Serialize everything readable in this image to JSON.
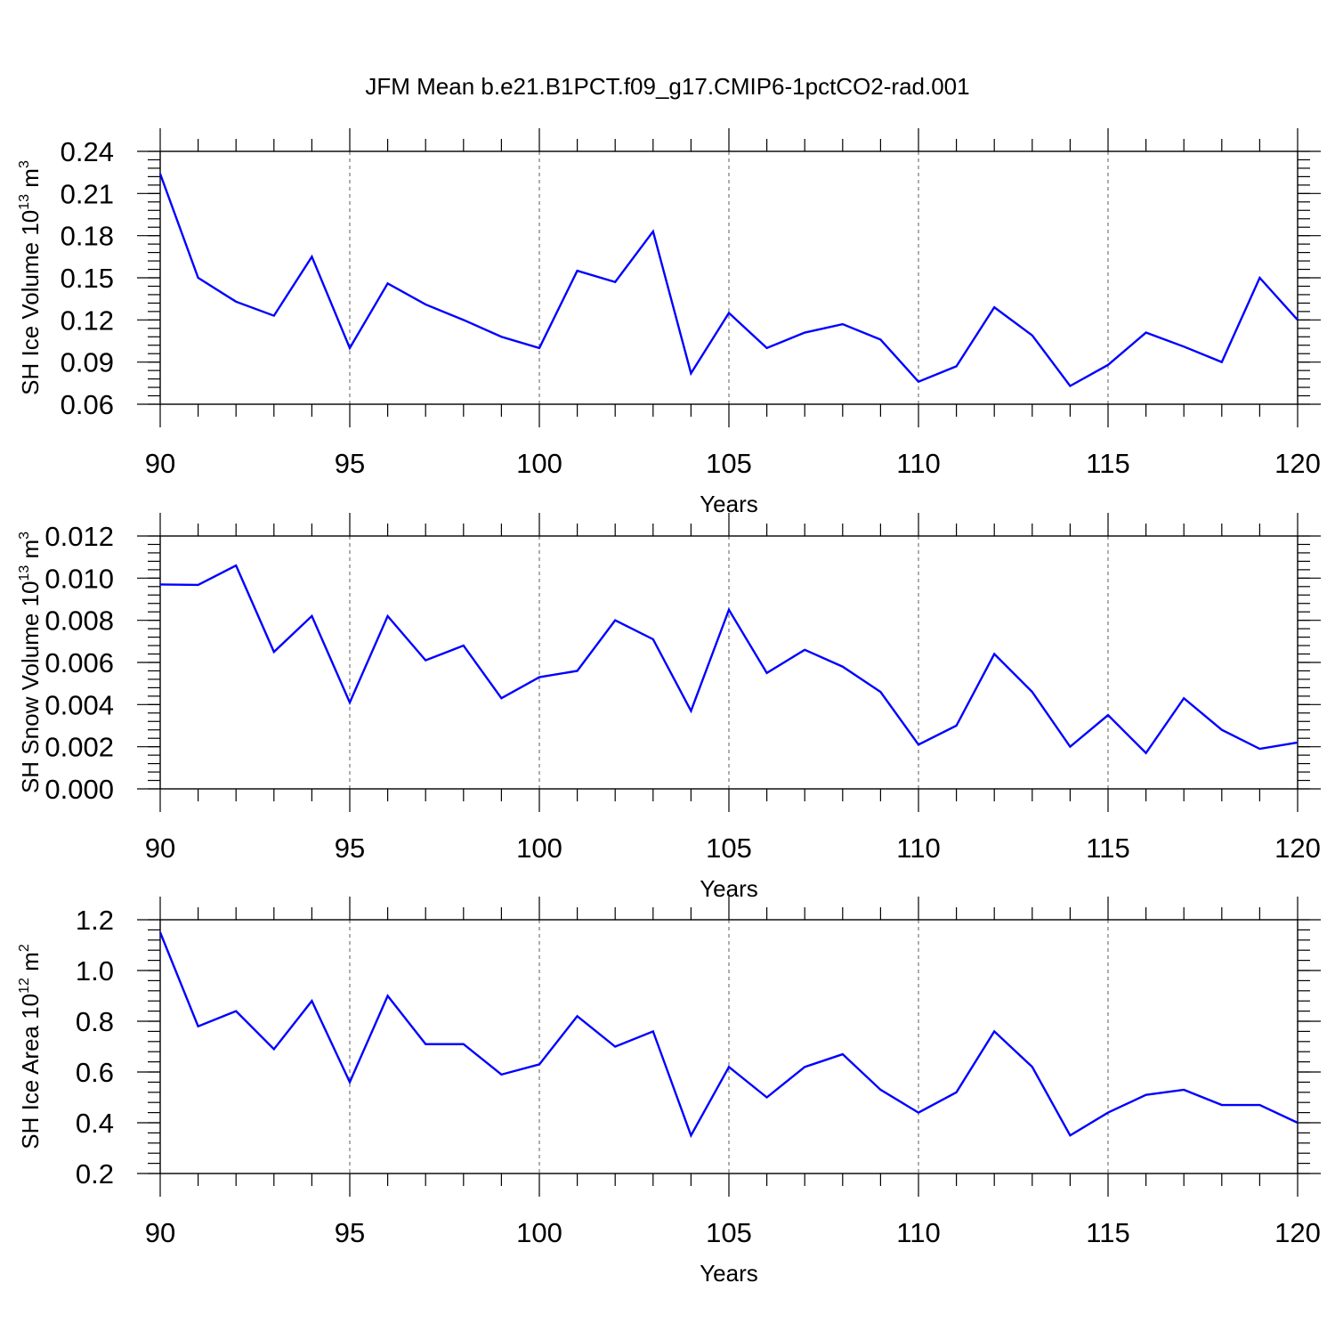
{
  "title": "JFM Mean b.e21.B1PCT.f09_g17.CMIP6-1pctCO2-rad.001",
  "line_color": "#0000ff",
  "chart_data": [
    {
      "type": "line",
      "title": "JFM Mean b.e21.B1PCT.f09_g17.CMIP6-1pctCO2-rad.001",
      "xlabel": "Years",
      "ylabel": "SH Ice Volume 10",
      "ylabel_exp": "13",
      "ylabel_unit": "m",
      "ylabel_unit_exp": "3",
      "xlim": [
        90,
        120
      ],
      "ylim": [
        0.06,
        0.24
      ],
      "x_ticks": [
        90,
        95,
        100,
        105,
        110,
        115,
        120
      ],
      "x_tick_labels": [
        "90",
        "95",
        "100",
        "105",
        "110",
        "115",
        "120"
      ],
      "y_ticks": [
        0.06,
        0.09,
        0.12,
        0.15,
        0.18,
        0.21,
        0.24
      ],
      "y_tick_labels": [
        "0.06",
        "0.09",
        "0.12",
        "0.15",
        "0.18",
        "0.21",
        "0.24"
      ],
      "y_minor_step": 0.006,
      "grid": "vertical dashed at major x ticks",
      "x": [
        90,
        91,
        92,
        93,
        94,
        95,
        96,
        97,
        98,
        99,
        100,
        101,
        102,
        103,
        104,
        105,
        106,
        107,
        108,
        109,
        110,
        111,
        112,
        113,
        114,
        115,
        116,
        117,
        118,
        119,
        120
      ],
      "values": [
        0.224,
        0.15,
        0.133,
        0.123,
        0.165,
        0.1,
        0.146,
        0.131,
        0.12,
        0.108,
        0.1,
        0.155,
        0.147,
        0.183,
        0.082,
        0.125,
        0.1,
        0.111,
        0.117,
        0.106,
        0.076,
        0.087,
        0.129,
        0.109,
        0.073,
        0.088,
        0.111,
        0.101,
        0.09,
        0.15,
        0.12
      ]
    },
    {
      "type": "line",
      "xlabel": "Years",
      "ylabel": "SH Snow Volume 10",
      "ylabel_exp": "13",
      "ylabel_unit": "m",
      "ylabel_unit_exp": "3",
      "xlim": [
        90,
        120
      ],
      "ylim": [
        0.0,
        0.012
      ],
      "x_ticks": [
        90,
        95,
        100,
        105,
        110,
        115,
        120
      ],
      "x_tick_labels": [
        "90",
        "95",
        "100",
        "105",
        "110",
        "115",
        "120"
      ],
      "y_ticks": [
        0.0,
        0.002,
        0.004,
        0.006,
        0.008,
        0.01,
        0.012
      ],
      "y_tick_labels": [
        "0.000",
        "0.002",
        "0.004",
        "0.006",
        "0.008",
        "0.010",
        "0.012"
      ],
      "y_minor_step": 0.0004,
      "grid": "vertical dashed at major x ticks",
      "x": [
        90,
        91,
        92,
        93,
        94,
        95,
        96,
        97,
        98,
        99,
        100,
        101,
        102,
        103,
        104,
        105,
        106,
        107,
        108,
        109,
        110,
        111,
        112,
        113,
        114,
        115,
        116,
        117,
        118,
        119,
        120
      ],
      "values": [
        0.0097,
        0.00968,
        0.0106,
        0.0065,
        0.0082,
        0.0041,
        0.0082,
        0.0061,
        0.0068,
        0.0043,
        0.0053,
        0.0056,
        0.008,
        0.0071,
        0.0037,
        0.0085,
        0.0055,
        0.0066,
        0.0058,
        0.0046,
        0.0021,
        0.003,
        0.0064,
        0.0046,
        0.002,
        0.0035,
        0.0017,
        0.0043,
        0.0028,
        0.0019,
        0.0022
      ]
    },
    {
      "type": "line",
      "xlabel": "Years",
      "ylabel": "SH Ice Area 10",
      "ylabel_exp": "12",
      "ylabel_unit": "m",
      "ylabel_unit_exp": "2",
      "xlim": [
        90,
        120
      ],
      "ylim": [
        0.2,
        1.2
      ],
      "x_ticks": [
        90,
        95,
        100,
        105,
        110,
        115,
        120
      ],
      "x_tick_labels": [
        "90",
        "95",
        "100",
        "105",
        "110",
        "115",
        "120"
      ],
      "y_ticks": [
        0.2,
        0.4,
        0.6,
        0.8,
        1.0,
        1.2
      ],
      "y_tick_labels": [
        "0.2",
        "0.4",
        "0.6",
        "0.8",
        "1.0",
        "1.2"
      ],
      "y_minor_step": 0.04,
      "grid": "vertical dashed at major x ticks",
      "x": [
        90,
        91,
        92,
        93,
        94,
        95,
        96,
        97,
        98,
        99,
        100,
        101,
        102,
        103,
        104,
        105,
        106,
        107,
        108,
        109,
        110,
        111,
        112,
        113,
        114,
        115,
        116,
        117,
        118,
        119,
        120
      ],
      "values": [
        1.15,
        0.78,
        0.84,
        0.69,
        0.88,
        0.56,
        0.9,
        0.71,
        0.71,
        0.59,
        0.63,
        0.82,
        0.7,
        0.76,
        0.35,
        0.62,
        0.5,
        0.62,
        0.67,
        0.53,
        0.44,
        0.52,
        0.76,
        0.62,
        0.35,
        0.44,
        0.51,
        0.53,
        0.47,
        0.47,
        0.4
      ]
    }
  ]
}
